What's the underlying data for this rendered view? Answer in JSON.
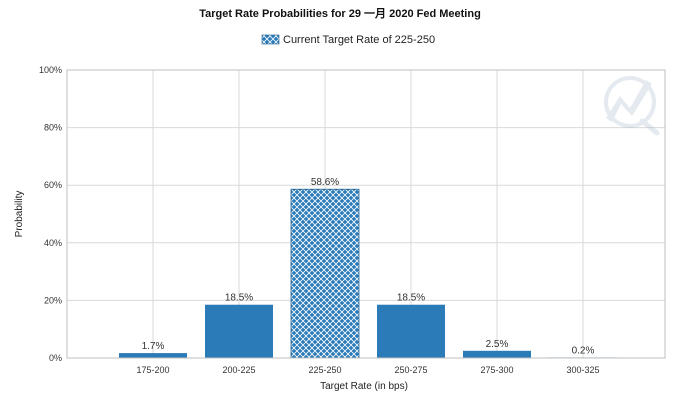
{
  "chart_data": {
    "type": "bar",
    "title": "Target Rate Probabilities for 29 一月 2020 Fed Meeting",
    "legend": {
      "label": "Current Target Rate of 225-250",
      "placement": "top-center"
    },
    "xlabel": "Target Rate (in bps)",
    "ylabel": "Probability",
    "categories": [
      "175-200",
      "200-225",
      "225-250",
      "250-275",
      "275-300",
      "300-325"
    ],
    "values": [
      1.7,
      18.5,
      58.6,
      18.5,
      2.5,
      0.2
    ],
    "value_labels": [
      "1.7%",
      "18.5%",
      "58.6%",
      "18.5%",
      "2.5%",
      "0.2%"
    ],
    "highlight_category": "225-250",
    "ylim": [
      0,
      100
    ],
    "yticks": [
      0,
      20,
      40,
      60,
      80,
      100
    ],
    "ytick_labels": [
      "0%",
      "20%",
      "40%",
      "60%",
      "80%",
      "100%"
    ],
    "grid": true,
    "colors": {
      "bar": "#2b7bb9",
      "highlight_bar": "#2b7bb9",
      "hatch": "#ffffff",
      "grid": "#d9d9d9"
    }
  }
}
